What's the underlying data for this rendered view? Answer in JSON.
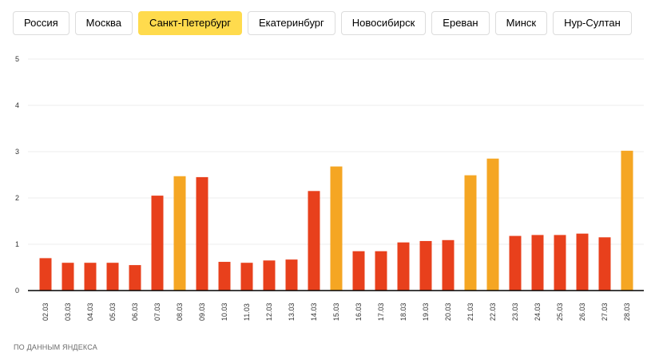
{
  "tabs": [
    {
      "label": "Россия",
      "active": false
    },
    {
      "label": "Москва",
      "active": false
    },
    {
      "label": "Санкт-Петербург",
      "active": true
    },
    {
      "label": "Екатеринбург",
      "active": false
    },
    {
      "label": "Новосибирск",
      "active": false
    },
    {
      "label": "Ереван",
      "active": false
    },
    {
      "label": "Минск",
      "active": false
    },
    {
      "label": "Нур-Султан",
      "active": false
    }
  ],
  "colors": {
    "weekday_bar": "#e8401c",
    "weekend_bar": "#f5a623",
    "active_tab": "#ffdb4d"
  },
  "chart_data": {
    "type": "bar",
    "title": "",
    "xlabel": "",
    "ylabel": "",
    "ylim": [
      0,
      5
    ],
    "yticks": [
      "0",
      "1",
      "2",
      "3",
      "4",
      "5"
    ],
    "grid": true,
    "categories": [
      "02.03",
      "03.03",
      "04.03",
      "05.03",
      "06.03",
      "07.03",
      "08.03",
      "09.03",
      "10.03",
      "11.03",
      "12.03",
      "13.03",
      "14.03",
      "15.03",
      "16.03",
      "17.03",
      "18.03",
      "19.03",
      "20.03",
      "21.03",
      "22.03",
      "23.03",
      "24.03",
      "25.03",
      "26.03",
      "27.03",
      "28.03"
    ],
    "values": [
      0.7,
      0.6,
      0.6,
      0.6,
      0.55,
      2.05,
      2.47,
      2.45,
      0.62,
      0.6,
      0.65,
      0.67,
      2.15,
      2.68,
      0.85,
      0.85,
      1.04,
      1.07,
      1.09,
      2.49,
      2.85,
      1.18,
      1.2,
      1.2,
      1.23,
      1.15,
      3.02
    ],
    "highlighted": [
      false,
      false,
      false,
      false,
      false,
      false,
      true,
      false,
      false,
      false,
      false,
      false,
      false,
      true,
      false,
      false,
      false,
      false,
      false,
      true,
      true,
      false,
      false,
      false,
      false,
      false,
      true
    ]
  },
  "source_text": "ПО ДАННЫМ ЯНДЕКСА"
}
